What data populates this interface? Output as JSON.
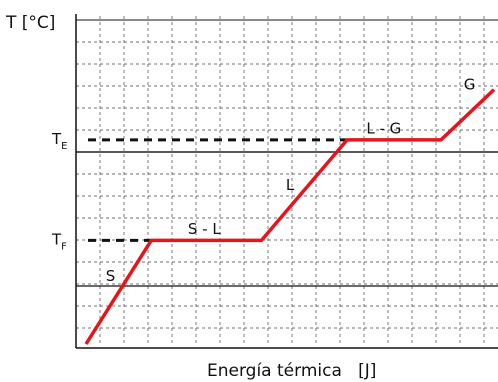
{
  "chart_data": {
    "type": "line",
    "ylabel": "T [°C]",
    "xlabel": "Energía térmica   [J]",
    "y_ticks": [
      {
        "label": "T",
        "sub": "E",
        "value": 0.65
      },
      {
        "label": "T",
        "sub": "F",
        "value": 0.33
      }
    ],
    "series": [
      {
        "x": [
          0.0,
          0.16,
          0.43,
          0.64,
          0.87,
          1.0
        ],
        "y": [
          0.0,
          0.33,
          0.33,
          0.65,
          0.65,
          0.81
        ]
      }
    ],
    "segment_labels": [
      {
        "text": "S",
        "x": 0.06,
        "y": 0.2
      },
      {
        "text": "S - L",
        "x": 0.29,
        "y": 0.35
      },
      {
        "text": "L",
        "x": 0.5,
        "y": 0.49
      },
      {
        "text": "L - G",
        "x": 0.73,
        "y": 0.67
      },
      {
        "text": "G",
        "x": 0.94,
        "y": 0.81
      }
    ],
    "xlim": [
      0,
      1
    ],
    "ylim": [
      0,
      1
    ],
    "grid": true,
    "colors": {
      "line": "#e8141c",
      "dashed": "#111111",
      "grid": "#444444"
    }
  }
}
